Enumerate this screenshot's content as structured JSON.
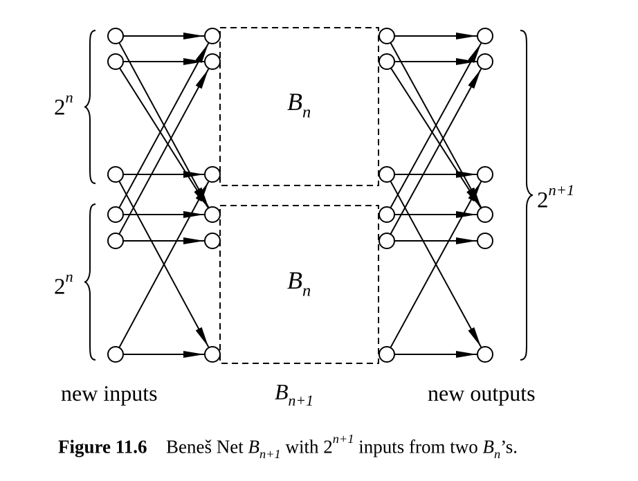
{
  "diagram": {
    "inner_box_top": {
      "name": "B",
      "sub": "n"
    },
    "inner_box_bottom": {
      "name": "B",
      "sub": "n"
    },
    "brace_top": {
      "base": "2",
      "sup": "n"
    },
    "brace_bottom": {
      "base": "2",
      "sup": "n"
    },
    "brace_right": {
      "base": "2",
      "sup": "n+1"
    },
    "label_inputs": "new inputs",
    "label_outputs": "new outputs",
    "label_net": {
      "name": "B",
      "sub": "n+1"
    }
  },
  "caption": {
    "figure_label": "Figure 11.6",
    "text_1": "Beneš Net ",
    "net_name": "B",
    "net_sub": "n+1",
    "text_2": " with 2",
    "count_sup": "n+1",
    "text_3": " inputs from two ",
    "part_name": "B",
    "part_sub": "n",
    "text_4": "’s."
  }
}
